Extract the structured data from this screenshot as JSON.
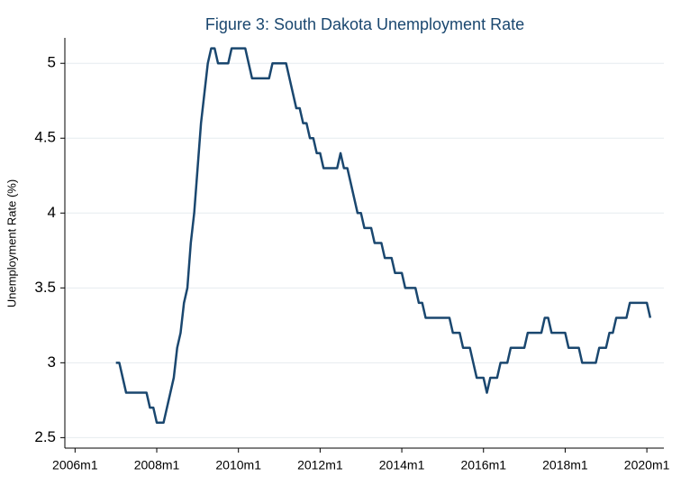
{
  "chart_data": {
    "type": "line",
    "title": "Figure 3: South Dakota Unemployment Rate",
    "y_label": "Unemployment Rate (%)",
    "color": "#1a476f",
    "grid": true,
    "ylim": [
      2.43,
      5.17
    ],
    "yticks": [
      2.5,
      3,
      3.5,
      4,
      4.5,
      5
    ],
    "xlim": [
      "2005m10",
      "2020m6"
    ],
    "xticks": [
      "2006m1",
      "2008m1",
      "2010m1",
      "2012m1",
      "2014m1",
      "2016m1",
      "2018m1",
      "2020m1"
    ],
    "x": [
      "2007m1",
      "2007m2",
      "2007m3",
      "2007m4",
      "2007m5",
      "2007m6",
      "2007m7",
      "2007m8",
      "2007m9",
      "2007m10",
      "2007m11",
      "2007m12",
      "2008m1",
      "2008m2",
      "2008m3",
      "2008m4",
      "2008m5",
      "2008m6",
      "2008m7",
      "2008m8",
      "2008m9",
      "2008m10",
      "2008m11",
      "2008m12",
      "2009m1",
      "2009m2",
      "2009m3",
      "2009m4",
      "2009m5",
      "2009m6",
      "2009m7",
      "2009m8",
      "2009m9",
      "2009m10",
      "2009m11",
      "2009m12",
      "2010m1",
      "2010m2",
      "2010m3",
      "2010m4",
      "2010m5",
      "2010m6",
      "2010m7",
      "2010m8",
      "2010m9",
      "2010m10",
      "2010m11",
      "2010m12",
      "2011m1",
      "2011m2",
      "2011m3",
      "2011m4",
      "2011m5",
      "2011m6",
      "2011m7",
      "2011m8",
      "2011m9",
      "2011m10",
      "2011m11",
      "2011m12",
      "2012m1",
      "2012m2",
      "2012m3",
      "2012m4",
      "2012m5",
      "2012m6",
      "2012m7",
      "2012m8",
      "2012m9",
      "2012m10",
      "2012m11",
      "2012m12",
      "2013m1",
      "2013m2",
      "2013m3",
      "2013m4",
      "2013m5",
      "2013m6",
      "2013m7",
      "2013m8",
      "2013m9",
      "2013m10",
      "2013m11",
      "2013m12",
      "2014m1",
      "2014m2",
      "2014m3",
      "2014m4",
      "2014m5",
      "2014m6",
      "2014m7",
      "2014m8",
      "2014m9",
      "2014m10",
      "2014m11",
      "2014m12",
      "2015m1",
      "2015m2",
      "2015m3",
      "2015m4",
      "2015m5",
      "2015m6",
      "2015m7",
      "2015m8",
      "2015m9",
      "2015m10",
      "2015m11",
      "2015m12",
      "2016m1",
      "2016m2",
      "2016m3",
      "2016m4",
      "2016m5",
      "2016m6",
      "2016m7",
      "2016m8",
      "2016m9",
      "2016m10",
      "2016m11",
      "2016m12",
      "2017m1",
      "2017m2",
      "2017m3",
      "2017m4",
      "2017m5",
      "2017m6",
      "2017m7",
      "2017m8",
      "2017m9",
      "2017m10",
      "2017m11",
      "2017m12",
      "2018m1",
      "2018m2",
      "2018m3",
      "2018m4",
      "2018m5",
      "2018m6",
      "2018m7",
      "2018m8",
      "2018m9",
      "2018m10",
      "2018m11",
      "2018m12",
      "2019m1",
      "2019m2",
      "2019m3",
      "2019m4",
      "2019m5",
      "2019m6",
      "2019m7",
      "2019m8",
      "2019m9",
      "2019m10",
      "2019m11",
      "2019m12",
      "2020m1",
      "2020m2"
    ],
    "values": [
      3.0,
      3.0,
      2.9,
      2.8,
      2.8,
      2.8,
      2.8,
      2.8,
      2.8,
      2.8,
      2.7,
      2.7,
      2.6,
      2.6,
      2.6,
      2.7,
      2.8,
      2.9,
      3.1,
      3.2,
      3.4,
      3.5,
      3.8,
      4.0,
      4.3,
      4.6,
      4.8,
      5.0,
      5.1,
      5.1,
      5.0,
      5.0,
      5.0,
      5.0,
      5.1,
      5.1,
      5.1,
      5.1,
      5.1,
      5.0,
      4.9,
      4.9,
      4.9,
      4.9,
      4.9,
      4.9,
      5.0,
      5.0,
      5.0,
      5.0,
      5.0,
      4.9,
      4.8,
      4.7,
      4.7,
      4.6,
      4.6,
      4.5,
      4.5,
      4.4,
      4.4,
      4.3,
      4.3,
      4.3,
      4.3,
      4.3,
      4.4,
      4.3,
      4.3,
      4.2,
      4.1,
      4.0,
      4.0,
      3.9,
      3.9,
      3.9,
      3.8,
      3.8,
      3.8,
      3.7,
      3.7,
      3.7,
      3.6,
      3.6,
      3.6,
      3.5,
      3.5,
      3.5,
      3.5,
      3.4,
      3.4,
      3.3,
      3.3,
      3.3,
      3.3,
      3.3,
      3.3,
      3.3,
      3.3,
      3.2,
      3.2,
      3.2,
      3.1,
      3.1,
      3.1,
      3.0,
      2.9,
      2.9,
      2.9,
      2.8,
      2.9,
      2.9,
      2.9,
      3.0,
      3.0,
      3.0,
      3.1,
      3.1,
      3.1,
      3.1,
      3.1,
      3.2,
      3.2,
      3.2,
      3.2,
      3.2,
      3.3,
      3.3,
      3.2,
      3.2,
      3.2,
      3.2,
      3.2,
      3.1,
      3.1,
      3.1,
      3.1,
      3.0,
      3.0,
      3.0,
      3.0,
      3.0,
      3.1,
      3.1,
      3.1,
      3.2,
      3.2,
      3.3,
      3.3,
      3.3,
      3.3,
      3.4,
      3.4,
      3.4,
      3.4,
      3.4,
      3.4,
      3.3
    ]
  }
}
